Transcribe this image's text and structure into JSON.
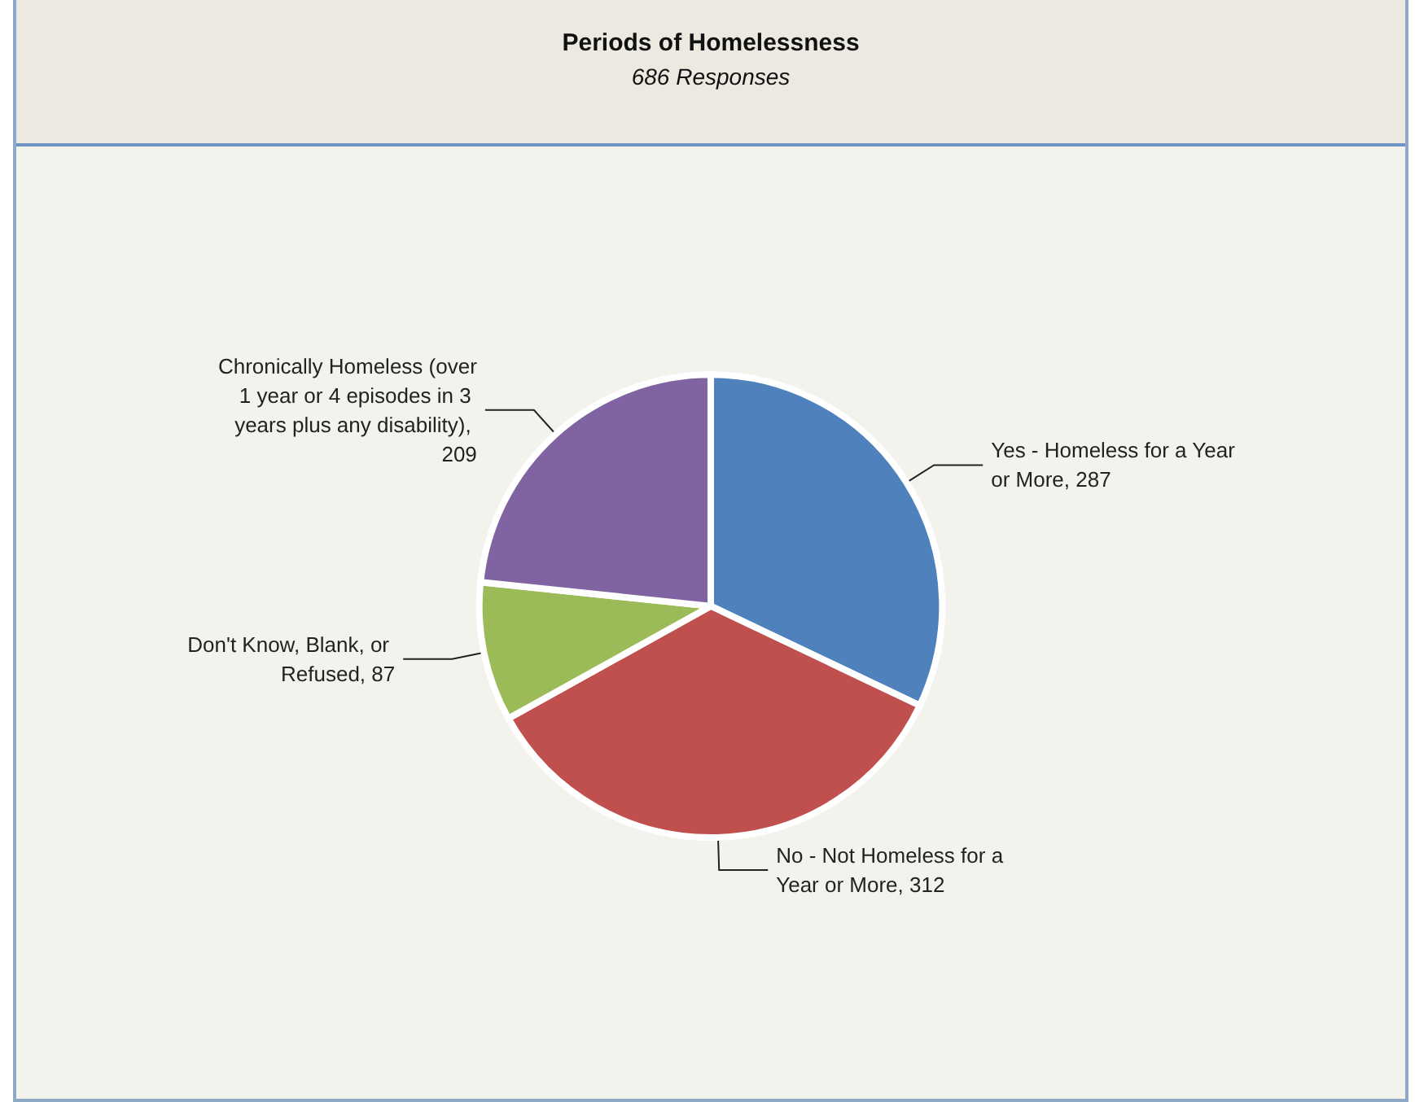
{
  "chart_data": {
    "type": "pie",
    "title": "Periods of Homelessness",
    "subtitle": "686 Responses",
    "categories": [
      "Yes - Homeless for a Year or More",
      "No - Not Homeless for a Year or More",
      "Don't Know, Blank, or Refused",
      "Chronically Homeless (over 1 year or 4 episodes in 3 years plus any disability)"
    ],
    "values": [
      287,
      312,
      87,
      209
    ],
    "colors": [
      "#4f81bd",
      "#c0504d",
      "#9bbb59",
      "#8064a2"
    ],
    "value_labels": [
      ", 287",
      ", 312",
      ", 87",
      ", 209"
    ],
    "legend": false
  }
}
